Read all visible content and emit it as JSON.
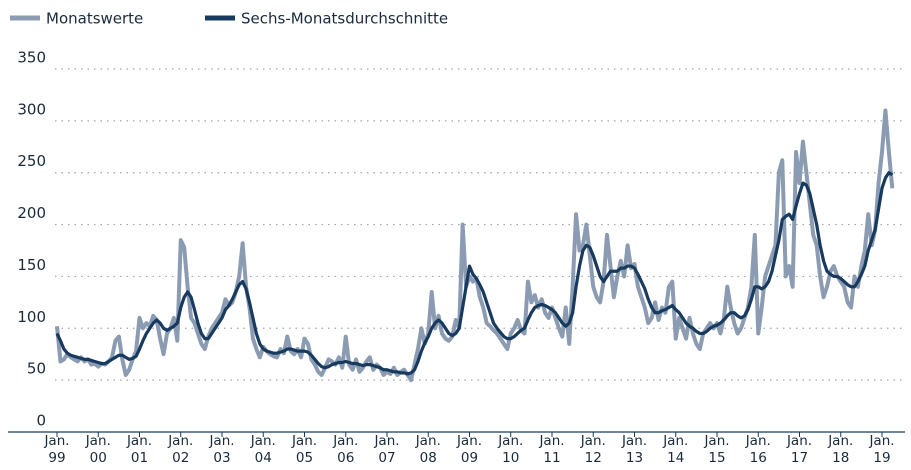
{
  "chart_data": {
    "type": "line",
    "x": [
      "1999-01",
      "1999-02",
      "1999-03",
      "1999-04",
      "1999-05",
      "1999-06",
      "1999-07",
      "1999-08",
      "1999-09",
      "1999-10",
      "1999-11",
      "1999-12",
      "2000-01",
      "2000-02",
      "2000-03",
      "2000-04",
      "2000-05",
      "2000-06",
      "2000-07",
      "2000-08",
      "2000-09",
      "2000-10",
      "2000-11",
      "2000-12",
      "2001-01",
      "2001-02",
      "2001-03",
      "2001-04",
      "2001-05",
      "2001-06",
      "2001-07",
      "2001-08",
      "2001-09",
      "2001-10",
      "2001-11",
      "2001-12",
      "2002-01",
      "2002-02",
      "2002-03",
      "2002-04",
      "2002-05",
      "2002-06",
      "2002-07",
      "2002-08",
      "2002-09",
      "2002-10",
      "2002-11",
      "2002-12",
      "2003-01",
      "2003-02",
      "2003-03",
      "2003-04",
      "2003-05",
      "2003-06",
      "2003-07",
      "2003-08",
      "2003-09",
      "2003-10",
      "2003-11",
      "2003-12",
      "2004-01",
      "2004-02",
      "2004-03",
      "2004-04",
      "2004-05",
      "2004-06",
      "2004-07",
      "2004-08",
      "2004-09",
      "2004-10",
      "2004-11",
      "2004-12",
      "2005-01",
      "2005-02",
      "2005-03",
      "2005-04",
      "2005-05",
      "2005-06",
      "2005-07",
      "2005-08",
      "2005-09",
      "2005-10",
      "2005-11",
      "2005-12",
      "2006-01",
      "2006-02",
      "2006-03",
      "2006-04",
      "2006-05",
      "2006-06",
      "2006-07",
      "2006-08",
      "2006-09",
      "2006-10",
      "2006-11",
      "2006-12",
      "2007-01",
      "2007-02",
      "2007-03",
      "2007-04",
      "2007-05",
      "2007-06",
      "2007-07",
      "2007-08",
      "2007-09",
      "2007-10",
      "2007-11",
      "2007-12",
      "2008-01",
      "2008-02",
      "2008-03",
      "2008-04",
      "2008-05",
      "2008-06",
      "2008-07",
      "2008-08",
      "2008-09",
      "2008-10",
      "2008-11",
      "2008-12",
      "2009-01",
      "2009-02",
      "2009-03",
      "2009-04",
      "2009-05",
      "2009-06",
      "2009-07",
      "2009-08",
      "2009-09",
      "2009-10",
      "2009-11",
      "2009-12",
      "2010-01",
      "2010-02",
      "2010-03",
      "2010-04",
      "2010-05",
      "2010-06",
      "2010-07",
      "2010-08",
      "2010-09",
      "2010-10",
      "2010-11",
      "2010-12",
      "2011-01",
      "2011-02",
      "2011-03",
      "2011-04",
      "2011-05",
      "2011-06",
      "2011-07",
      "2011-08",
      "2011-09",
      "2011-10",
      "2011-11",
      "2011-12",
      "2012-01",
      "2012-02",
      "2012-03",
      "2012-04",
      "2012-05",
      "2012-06",
      "2012-07",
      "2012-08",
      "2012-09",
      "2012-10",
      "2012-11",
      "2012-12",
      "2013-01",
      "2013-02",
      "2013-03",
      "2013-04",
      "2013-05",
      "2013-06",
      "2013-07",
      "2013-08",
      "2013-09",
      "2013-10",
      "2013-11",
      "2013-12",
      "2014-01",
      "2014-02",
      "2014-03",
      "2014-04",
      "2014-05",
      "2014-06",
      "2014-07",
      "2014-08",
      "2014-09",
      "2014-10",
      "2014-11",
      "2014-12",
      "2015-01",
      "2015-02",
      "2015-03",
      "2015-04",
      "2015-05",
      "2015-06",
      "2015-07",
      "2015-08",
      "2015-09",
      "2015-10",
      "2015-11",
      "2015-12",
      "2016-01",
      "2016-02",
      "2016-03",
      "2016-04",
      "2016-05",
      "2016-06",
      "2016-07",
      "2016-08",
      "2016-09",
      "2016-10",
      "2016-11",
      "2016-12",
      "2017-01",
      "2017-02",
      "2017-03",
      "2017-04",
      "2017-05",
      "2017-06",
      "2017-07",
      "2017-08",
      "2017-09",
      "2017-10",
      "2017-11",
      "2017-12",
      "2018-01",
      "2018-02",
      "2018-03",
      "2018-04",
      "2018-05",
      "2018-06",
      "2018-07",
      "2018-08",
      "2018-09",
      "2018-10",
      "2018-11",
      "2018-12",
      "2019-01",
      "2019-02",
      "2019-03",
      "2019-04"
    ],
    "series": [
      {
        "name": "Monatswerte",
        "color": "#8b9cb2",
        "values": [
          102,
          68,
          70,
          75,
          72,
          70,
          68,
          72,
          68,
          70,
          65,
          66,
          63,
          66,
          65,
          68,
          72,
          88,
          92,
          70,
          55,
          60,
          70,
          78,
          110,
          100,
          105,
          102,
          112,
          108,
          90,
          75,
          95,
          100,
          110,
          88,
          185,
          178,
          140,
          110,
          105,
          95,
          85,
          80,
          92,
          100,
          105,
          110,
          115,
          128,
          122,
          125,
          135,
          150,
          182,
          140,
          120,
          90,
          80,
          72,
          82,
          78,
          75,
          73,
          72,
          80,
          76,
          92,
          78,
          75,
          80,
          72,
          90,
          85,
          70,
          65,
          58,
          55,
          62,
          70,
          68,
          65,
          72,
          62,
          92,
          65,
          60,
          70,
          58,
          62,
          68,
          72,
          60,
          65,
          62,
          55,
          58,
          56,
          62,
          55,
          58,
          60,
          55,
          50,
          65,
          80,
          100,
          85,
          95,
          135,
          100,
          112,
          95,
          90,
          88,
          92,
          108,
          100,
          200,
          140,
          150,
          145,
          148,
          130,
          120,
          105,
          102,
          98,
          95,
          90,
          85,
          80,
          95,
          100,
          108,
          98,
          95,
          145,
          125,
          132,
          120,
          128,
          115,
          110,
          120,
          110,
          100,
          92,
          120,
          85,
          140,
          210,
          175,
          180,
          200,
          170,
          140,
          130,
          125,
          145,
          190,
          160,
          130,
          150,
          165,
          150,
          180,
          158,
          162,
          140,
          130,
          120,
          105,
          110,
          125,
          108,
          120,
          115,
          140,
          145,
          90,
          110,
          100,
          90,
          110,
          95,
          85,
          80,
          95,
          100,
          105,
          100,
          105,
          95,
          110,
          140,
          120,
          105,
          95,
          100,
          110,
          120,
          140,
          190,
          95,
          120,
          150,
          160,
          170,
          180,
          250,
          262,
          150,
          160,
          140,
          270,
          240,
          280,
          250,
          220,
          190,
          180,
          150,
          130,
          140,
          155,
          160,
          150,
          145,
          140,
          125,
          120,
          150,
          140,
          160,
          175,
          210,
          180,
          195,
          240,
          270,
          310,
          270,
          235
        ]
      },
      {
        "name": "Sechs-Monatsdurchschnitte",
        "color": "#173a5e",
        "values": [
          95,
          88,
          80,
          76,
          74,
          73,
          72,
          71,
          70,
          70,
          69,
          68,
          67,
          66,
          66,
          68,
          70,
          72,
          74,
          74,
          72,
          70,
          71,
          73,
          80,
          88,
          95,
          100,
          105,
          108,
          105,
          100,
          98,
          100,
          102,
          105,
          120,
          130,
          135,
          130,
          118,
          105,
          95,
          90,
          90,
          95,
          100,
          105,
          110,
          118,
          122,
          128,
          135,
          142,
          145,
          138,
          125,
          110,
          95,
          85,
          80,
          78,
          77,
          76,
          76,
          77,
          78,
          80,
          80,
          79,
          78,
          78,
          78,
          77,
          74,
          70,
          66,
          63,
          62,
          63,
          65,
          66,
          67,
          67,
          68,
          67,
          66,
          66,
          65,
          64,
          65,
          65,
          64,
          63,
          62,
          60,
          60,
          59,
          58,
          58,
          57,
          57,
          56,
          57,
          60,
          68,
          78,
          86,
          92,
          100,
          105,
          108,
          105,
          100,
          95,
          93,
          95,
          100,
          120,
          140,
          160,
          152,
          148,
          142,
          135,
          125,
          115,
          105,
          100,
          96,
          92,
          90,
          90,
          92,
          95,
          98,
          100,
          108,
          115,
          120,
          122,
          123,
          122,
          120,
          118,
          115,
          110,
          105,
          102,
          105,
          115,
          140,
          160,
          175,
          180,
          178,
          170,
          160,
          150,
          145,
          150,
          155,
          155,
          155,
          158,
          158,
          160,
          160,
          158,
          152,
          145,
          138,
          128,
          120,
          115,
          115,
          117,
          118,
          120,
          122,
          118,
          115,
          110,
          105,
          102,
          100,
          97,
          95,
          95,
          97,
          100,
          102,
          103,
          105,
          108,
          112,
          115,
          115,
          112,
          110,
          112,
          118,
          128,
          140,
          140,
          138,
          140,
          145,
          155,
          170,
          185,
          205,
          208,
          210,
          205,
          218,
          230,
          240,
          238,
          230,
          215,
          200,
          180,
          165,
          155,
          152,
          150,
          150,
          148,
          145,
          142,
          140,
          140,
          145,
          152,
          160,
          175,
          185,
          195,
          215,
          235,
          245,
          250,
          248
        ]
      }
    ],
    "xticks": [
      {
        "value": "1999-01",
        "label": "Jan. 99"
      },
      {
        "value": "2000-01",
        "label": "Jan. 00"
      },
      {
        "value": "2001-01",
        "label": "Jan. 01"
      },
      {
        "value": "2002-01",
        "label": "Jan. 02"
      },
      {
        "value": "2003-01",
        "label": "Jan. 03"
      },
      {
        "value": "2004-01",
        "label": "Jan. 04"
      },
      {
        "value": "2005-01",
        "label": "Jan. 05"
      },
      {
        "value": "2006-01",
        "label": "Jan. 06"
      },
      {
        "value": "2007-01",
        "label": "Jan. 07"
      },
      {
        "value": "2008-01",
        "label": "Jan. 08"
      },
      {
        "value": "2009-01",
        "label": "Jan. 09"
      },
      {
        "value": "2010-01",
        "label": "Jan. 10"
      },
      {
        "value": "2011-01",
        "label": "Jan. 11"
      },
      {
        "value": "2012-01",
        "label": "Jan. 12"
      },
      {
        "value": "2013-01",
        "label": "Jan. 13"
      },
      {
        "value": "2014-01",
        "label": "Jan. 14"
      },
      {
        "value": "2015-01",
        "label": "Jan. 15"
      },
      {
        "value": "2016-01",
        "label": "Jan. 16"
      },
      {
        "value": "2017-01",
        "label": "Jan. 17"
      },
      {
        "value": "2018-01",
        "label": "Jan. 18"
      },
      {
        "value": "2019-01",
        "label": "Jan. 19"
      }
    ],
    "ylim": [
      0,
      350
    ],
    "yticks": [
      0,
      50,
      100,
      150,
      200,
      250,
      300,
      350
    ],
    "grid": true,
    "legend": "top-left"
  }
}
